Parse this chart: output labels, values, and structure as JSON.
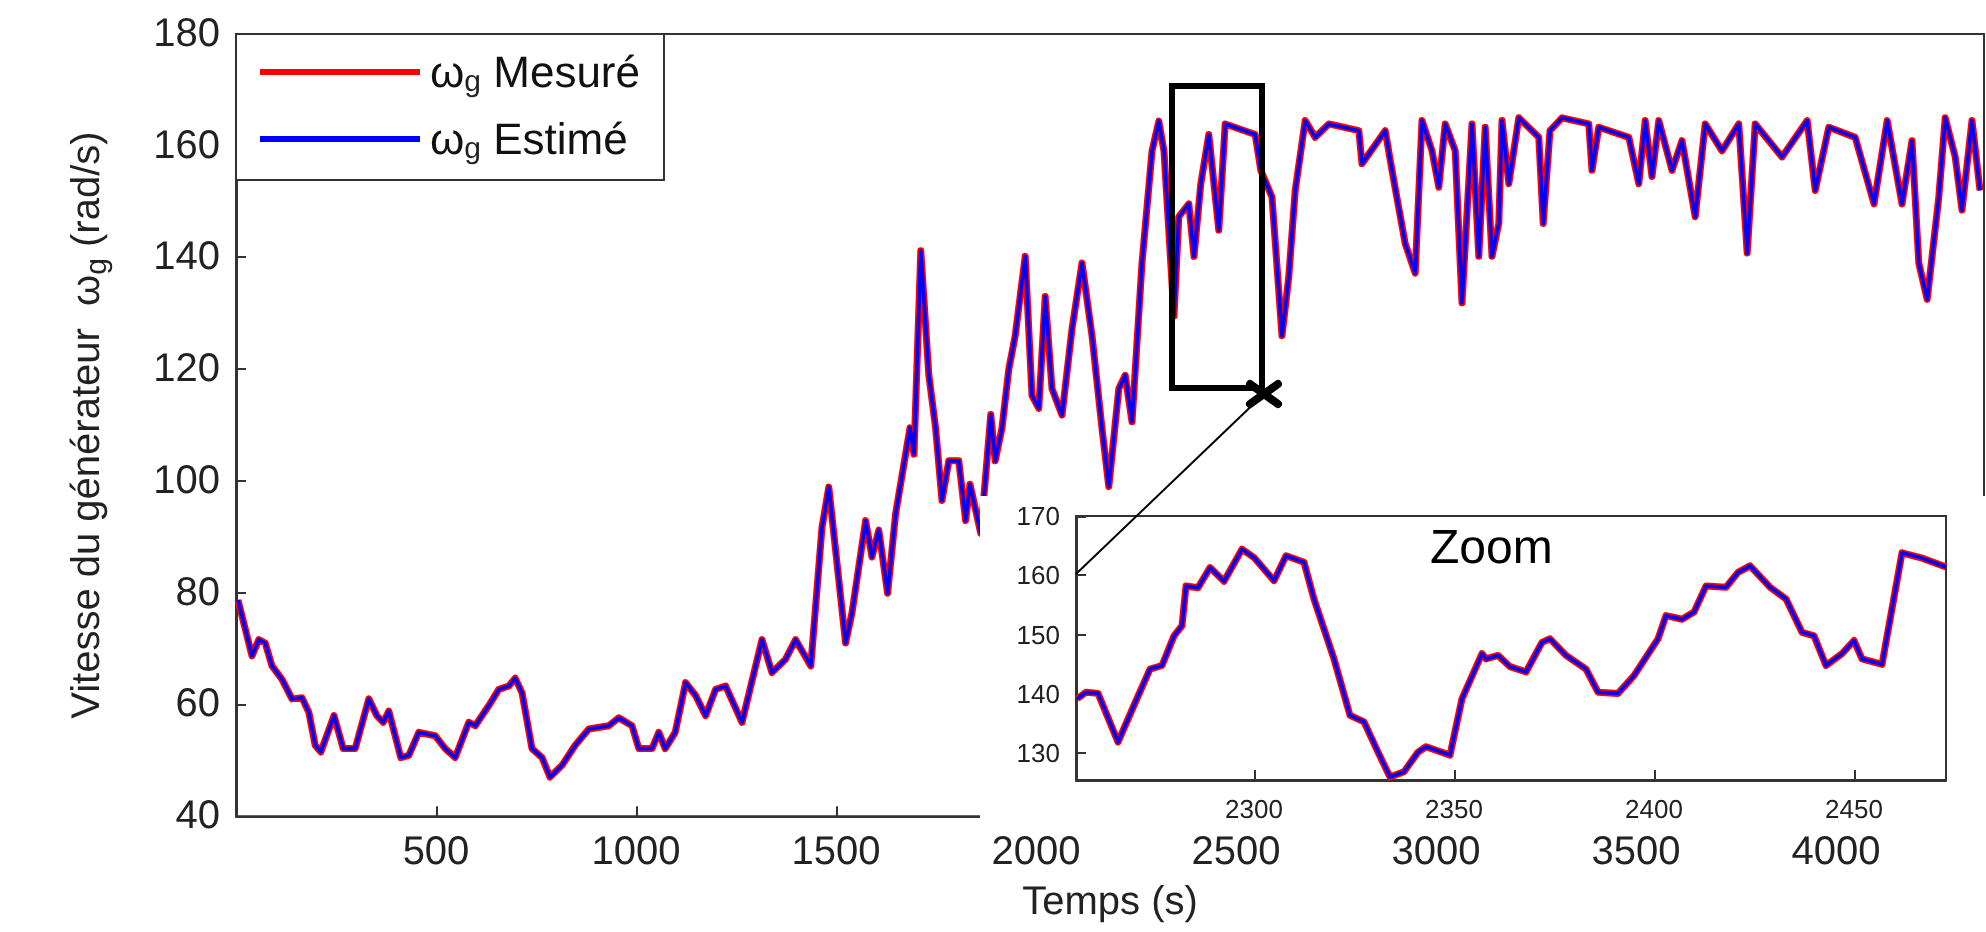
{
  "chart_data": [
    {
      "type": "line",
      "xlabel": "Temps (s)",
      "ylabel": "Vitesse du générateur  ω$_{g}$ (rad/s)",
      "x": [
        5,
        40,
        57,
        73,
        90,
        115,
        140,
        165,
        182,
        198,
        212,
        245,
        268,
        298,
        332,
        352,
        368,
        382,
        412,
        432,
        457,
        498,
        523,
        548,
        582,
        598,
        632,
        657,
        682,
        698,
        715,
        740,
        765,
        785,
        815,
        848,
        882,
        932,
        957,
        990,
        1007,
        1040,
        1057,
        1073,
        1098,
        1124,
        1149,
        1174,
        1199,
        1224,
        1265,
        1315,
        1340,
        1374,
        1399,
        1437,
        1465,
        1482,
        1524,
        1540,
        1574,
        1590,
        1607,
        1629,
        1649,
        1674,
        1685,
        1695,
        1712,
        1732,
        1749,
        1765,
        1782,
        1807,
        1824,
        1835,
        1862,
        1887,
        1898,
        1915,
        1932,
        1948,
        1973,
        1990,
        2007,
        2023,
        2040,
        2065,
        2090,
        2115,
        2140,
        2165,
        2182,
        2207,
        2223,
        2240,
        2265,
        2290,
        2307,
        2320,
        2345,
        2357,
        2382,
        2395,
        2412,
        2432,
        2457,
        2473,
        2548,
        2562,
        2590,
        2615,
        2632,
        2648,
        2673,
        2698,
        2732,
        2807,
        2815,
        2873,
        2890,
        2923,
        2948,
        2965,
        2990,
        3007,
        3023,
        3048,
        3065,
        3090,
        3107,
        3123,
        3140,
        3157,
        3165,
        3182,
        3207,
        3257,
        3268,
        3285,
        3315,
        3382,
        3390,
        3407,
        3482,
        3507,
        3523,
        3540,
        3557,
        3590,
        3615,
        3648,
        3673,
        3715,
        3757,
        3778,
        3798,
        3865,
        3928,
        3948,
        3982,
        4048,
        4095,
        4128,
        4165,
        4190,
        4207,
        4228,
        4257,
        4273,
        4298,
        4315,
        4340,
        4360
      ],
      "series": [
        {
          "name": "ω$_{g}$ Mesuré",
          "color": "#ff0000",
          "values": [
            78.7,
            68.7,
            71.6,
            71,
            66.9,
            64.5,
            61,
            61.2,
            58.6,
            52.7,
            51.5,
            58,
            52.1,
            52.1,
            61,
            58,
            56.8,
            58.8,
            50.5,
            50.9,
            55,
            54.4,
            52.1,
            50.5,
            56.8,
            56.2,
            59.8,
            62.7,
            63.3,
            64.7,
            62.1,
            52.1,
            50.5,
            47,
            49.1,
            52.7,
            55.6,
            56.2,
            57.6,
            56.2,
            52.1,
            52.1,
            55,
            52.1,
            55,
            63.9,
            61.6,
            58,
            62.7,
            63.3,
            56.8,
            71.6,
            65.7,
            68.1,
            71.6,
            66.9,
            91.7,
            98.9,
            71,
            76.4,
            92.9,
            86.4,
            91.2,
            79.9,
            94.1,
            104.8,
            109.5,
            104.8,
            141.2,
            119,
            109.5,
            96.5,
            103.6,
            103.6,
            92.9,
            99.4,
            90.6,
            111.9,
            103.6,
            109.5,
            120,
            126,
            140.2,
            115.3,
            113,
            133,
            116.5,
            111.8,
            127.2,
            139,
            126,
            109.4,
            99,
            116.5,
            118.9,
            110.6,
            139,
            159,
            164.4,
            159,
            129.5,
            147.3,
            149.6,
            140.2,
            153.2,
            162,
            144.9,
            163.9,
            162,
            155.6,
            150.8,
            126,
            136.6,
            152,
            164.5,
            161.5,
            163.9,
            162.7,
            156.8,
            162.7,
            155.6,
            142.5,
            137.2,
            164.5,
            159.1,
            152.6,
            163.9,
            159.1,
            131.9,
            163.9,
            140.2,
            163.3,
            140.2,
            146.1,
            164.5,
            153.2,
            165,
            161.5,
            146.1,
            162.7,
            165,
            163.9,
            155.6,
            163.3,
            161.5,
            153.2,
            164.5,
            154.5,
            164.5,
            155.6,
            160.9,
            147.3,
            163.9,
            159.1,
            163.9,
            140.8,
            163.9,
            158,
            164.5,
            152,
            163.3,
            161.5,
            149.6,
            164.5,
            149.6,
            160.9,
            139,
            132.5,
            150.8,
            165,
            158,
            148.5,
            164.5,
            152
          ]
        },
        {
          "name": "ω$_{g}$ Estimé",
          "color": "#0000ff",
          "values": [
            78.7,
            68.7,
            71.6,
            71,
            66.9,
            64.5,
            61,
            61.2,
            58.6,
            52.7,
            51.5,
            58,
            52.1,
            52.1,
            61,
            58,
            56.8,
            58.8,
            50.5,
            50.9,
            55,
            54.4,
            52.1,
            50.5,
            56.8,
            56.2,
            59.8,
            62.7,
            63.3,
            64.7,
            62.1,
            52.1,
            50.5,
            47,
            49.1,
            52.7,
            55.6,
            56.2,
            57.6,
            56.2,
            52.1,
            52.1,
            55,
            52.1,
            55,
            63.9,
            61.6,
            58,
            62.7,
            63.3,
            56.8,
            71.6,
            65.7,
            68.1,
            71.6,
            66.9,
            91.7,
            98.9,
            71,
            76.4,
            92.9,
            86.4,
            91.2,
            79.9,
            94.1,
            104.8,
            109.5,
            104.8,
            141.2,
            119,
            109.5,
            96.5,
            103.6,
            103.6,
            92.9,
            99.4,
            90.6,
            111.9,
            103.6,
            109.5,
            120,
            126,
            140.2,
            115.3,
            113,
            133,
            116.5,
            111.8,
            127.2,
            139,
            126,
            109.4,
            99,
            116.5,
            118.9,
            110.6,
            139,
            159,
            164.4,
            159,
            129.5,
            147.3,
            149.6,
            140.2,
            153.2,
            162,
            144.9,
            163.9,
            162,
            155.6,
            150.8,
            126,
            136.6,
            152,
            164.5,
            161.5,
            163.9,
            162.7,
            156.8,
            162.7,
            155.6,
            142.5,
            137.2,
            164.5,
            159.1,
            152.6,
            163.9,
            159.1,
            131.9,
            163.9,
            140.2,
            163.3,
            140.2,
            146.1,
            164.5,
            153.2,
            165,
            161.5,
            146.1,
            162.7,
            165,
            163.9,
            155.6,
            163.3,
            161.5,
            153.2,
            164.5,
            154.5,
            164.5,
            155.6,
            160.9,
            147.3,
            163.9,
            159.1,
            163.9,
            140.8,
            163.9,
            158,
            164.5,
            152,
            163.3,
            161.5,
            149.6,
            164.5,
            149.6,
            160.9,
            139,
            132.5,
            150.8,
            165,
            158,
            148.5,
            164.5,
            152
          ]
        }
      ],
      "xlim": [
        0,
        4370
      ],
      "xticks": [
        500,
        1000,
        1500,
        2000,
        2500,
        3000,
        3500,
        4000
      ],
      "ylim": [
        40,
        180
      ],
      "yticks": [
        40,
        60,
        80,
        100,
        120,
        140,
        160,
        180
      ],
      "legend": "top left"
    },
    {
      "type": "line",
      "annotations": [
        "Zoom"
      ],
      "x": [
        2255.8,
        2258,
        2261,
        2266,
        2270,
        2274,
        2277,
        2280,
        2282,
        2283,
        2286,
        2289,
        2292.5,
        2297,
        2300,
        2305,
        2308,
        2312.5,
        2315,
        2320,
        2324,
        2327.5,
        2331,
        2334,
        2337.5,
        2341,
        2343,
        2349,
        2352,
        2357,
        2358,
        2361,
        2364,
        2368,
        2372,
        2374,
        2378,
        2383,
        2386,
        2391,
        2395,
        2401,
        2403,
        2407,
        2410,
        2413,
        2418,
        2421,
        2424,
        2429,
        2433,
        2437,
        2440,
        2443,
        2447,
        2450,
        2452,
        2457,
        2462,
        2467,
        2473
      ],
      "series": [
        {
          "color": "#ff0000",
          "values": [
            139.2,
            140.3,
            140.1,
            131.9,
            138.1,
            144.2,
            144.8,
            149.8,
            151.5,
            158.2,
            157.9,
            161.3,
            159,
            164.4,
            163,
            159.1,
            163.3,
            162.2,
            156,
            145.9,
            136.4,
            135.3,
            130.2,
            126,
            126.9,
            130.2,
            131.1,
            129.7,
            139.2,
            146.8,
            145.9,
            146.5,
            144.6,
            143.7,
            148.7,
            149.3,
            146.5,
            144.2,
            140.3,
            140.1,
            143.1,
            149.3,
            153.2,
            152.6,
            153.8,
            158.2,
            158,
            160.5,
            161.6,
            158,
            156,
            150.4,
            149.8,
            144.8,
            146.8,
            149,
            145.9,
            145,
            163.8,
            162.9,
            161.4
          ]
        },
        {
          "color": "#0000ff",
          "values": [
            139.2,
            140.3,
            140.1,
            131.9,
            138.1,
            144.2,
            144.8,
            149.8,
            151.5,
            158.2,
            157.9,
            161.3,
            159,
            164.4,
            163,
            159.1,
            163.3,
            162.2,
            156,
            145.9,
            136.4,
            135.3,
            130.2,
            126,
            126.9,
            130.2,
            131.1,
            129.7,
            139.2,
            146.8,
            145.9,
            146.5,
            144.6,
            143.7,
            148.7,
            149.3,
            146.5,
            144.2,
            140.3,
            140.1,
            143.1,
            149.3,
            153.2,
            152.6,
            153.8,
            158.2,
            158,
            160.5,
            161.6,
            158,
            156,
            150.4,
            149.8,
            144.8,
            146.8,
            149,
            145.9,
            145,
            163.8,
            162.9,
            161.4
          ]
        }
      ],
      "xlim": [
        2255.5,
        2473
      ],
      "xticks": [
        2300,
        2350,
        2400,
        2450
      ],
      "ylim": [
        125.5,
        170
      ],
      "yticks": [
        130,
        140,
        150,
        160,
        170
      ]
    }
  ]
}
